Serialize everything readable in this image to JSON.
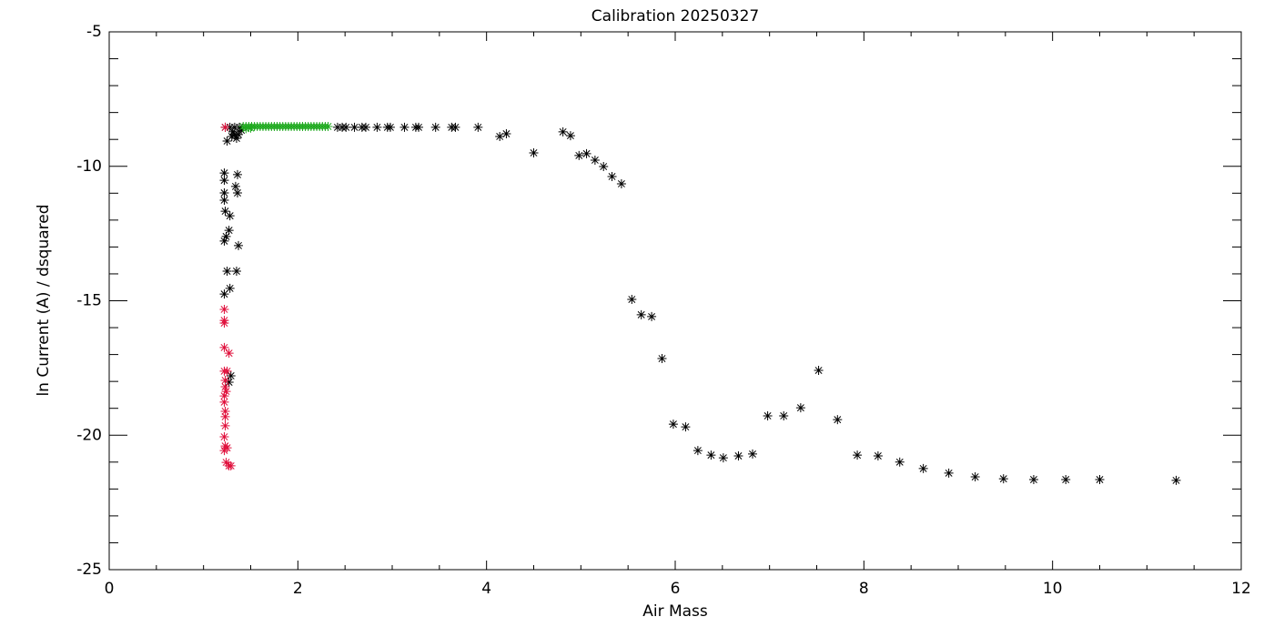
{
  "chart_data": {
    "type": "scatter",
    "title": "Calibration 20250327",
    "x_label": "Air Mass",
    "y_label": "ln Current (A) / dsquared",
    "xlim": [
      0,
      12
    ],
    "ylim": [
      -25,
      -5
    ],
    "xticks": [
      0,
      2,
      4,
      6,
      8,
      10,
      12
    ],
    "yticks": [
      -25,
      -20,
      -15,
      -10,
      -5
    ],
    "minor_ticks": {
      "x": 4,
      "y": 5
    },
    "marker": "asterisk",
    "series": [
      {
        "color": "#000000",
        "x": [
          11.31,
          10.5,
          10.14,
          9.8,
          9.48,
          9.18,
          8.9,
          8.63,
          8.38,
          8.15,
          7.93,
          7.72,
          7.52,
          7.33,
          7.15,
          6.98,
          6.82,
          6.67,
          6.51,
          6.38,
          6.24,
          6.11,
          5.98,
          5.86,
          5.75,
          5.64,
          5.54,
          5.43,
          5.33,
          5.24,
          5.15,
          5.06,
          4.98,
          4.89,
          4.81,
          4.5,
          4.21,
          4.14,
          3.91,
          3.67,
          3.63,
          3.46,
          3.28,
          3.25,
          3.13,
          2.98,
          2.95,
          2.84,
          2.72,
          2.68,
          2.6,
          2.51,
          2.47,
          2.42,
          1.23,
          1.28,
          1.33,
          1.38,
          1.25,
          1.3,
          1.33,
          1.37,
          1.35,
          1.31,
          1.4,
          1.22,
          1.36,
          1.22,
          1.34,
          1.36,
          1.22,
          1.22,
          1.23,
          1.28,
          1.24,
          1.27,
          1.22,
          1.37,
          1.25,
          1.35,
          1.28,
          1.22,
          1.29,
          1.27
        ],
        "values": [
          -21.68,
          -21.65,
          -21.65,
          -21.65,
          -21.62,
          -21.55,
          -21.41,
          -21.24,
          -21.0,
          -20.77,
          -20.74,
          -19.42,
          -17.59,
          -18.98,
          -19.28,
          -19.28,
          -20.7,
          -20.77,
          -20.84,
          -20.74,
          -20.57,
          -19.69,
          -19.59,
          -17.15,
          -15.59,
          -15.52,
          -14.95,
          -10.65,
          -10.38,
          -10.01,
          -9.77,
          -9.53,
          -9.6,
          -8.86,
          -8.72,
          -9.5,
          -8.79,
          -8.89,
          -8.55,
          -8.55,
          -8.55,
          -8.55,
          -8.55,
          -8.55,
          -8.55,
          -8.55,
          -8.55,
          -8.55,
          -8.55,
          -8.55,
          -8.55,
          -8.55,
          -8.55,
          -8.55,
          -8.55,
          -8.55,
          -8.55,
          -8.55,
          -9.06,
          -8.89,
          -8.82,
          -8.82,
          -8.96,
          -8.72,
          -8.66,
          -10.25,
          -10.31,
          -10.52,
          -10.75,
          -10.99,
          -10.99,
          -11.26,
          -11.67,
          -11.84,
          -12.61,
          -12.38,
          -12.78,
          -12.95,
          -13.9,
          -13.9,
          -14.54,
          -14.75,
          -17.79,
          -18.03
        ]
      },
      {
        "color": "#e0103c",
        "x": [
          1.23,
          1.22,
          1.22,
          1.22,
          1.22,
          1.27,
          1.22,
          1.25,
          1.23,
          1.22,
          1.22,
          1.23,
          1.23,
          1.23,
          1.22,
          1.23,
          1.25,
          1.22,
          1.24,
          1.27,
          1.29,
          1.24,
          1.23
        ],
        "values": [
          -8.55,
          -15.32,
          -15.73,
          -15.83,
          -16.74,
          -16.95,
          -17.62,
          -17.62,
          -18.2,
          -18.54,
          -18.77,
          -19.11,
          -19.31,
          -19.65,
          -20.06,
          -20.4,
          -20.47,
          -20.57,
          -21.01,
          -21.14,
          -21.14,
          -18.37,
          -17.96
        ]
      },
      {
        "color": "#1faa1f",
        "x": [
          1.42,
          1.45,
          1.48,
          1.51,
          1.54,
          1.57,
          1.6,
          1.63,
          1.66,
          1.69,
          1.72,
          1.75,
          1.78,
          1.81,
          1.84,
          1.87,
          1.9,
          1.93,
          1.96,
          1.99,
          2.02,
          2.05,
          2.08,
          2.11,
          2.14,
          2.17,
          2.2,
          2.23,
          2.26,
          2.29,
          2.32,
          1.45,
          1.5
        ],
        "values": [
          -8.52,
          -8.52,
          -8.52,
          -8.52,
          -8.52,
          -8.52,
          -8.52,
          -8.52,
          -8.52,
          -8.52,
          -8.52,
          -8.52,
          -8.52,
          -8.52,
          -8.52,
          -8.52,
          -8.52,
          -8.52,
          -8.52,
          -8.52,
          -8.52,
          -8.52,
          -8.52,
          -8.52,
          -8.52,
          -8.52,
          -8.52,
          -8.52,
          -8.52,
          -8.52,
          -8.52,
          -8.6,
          -8.58
        ]
      }
    ]
  }
}
